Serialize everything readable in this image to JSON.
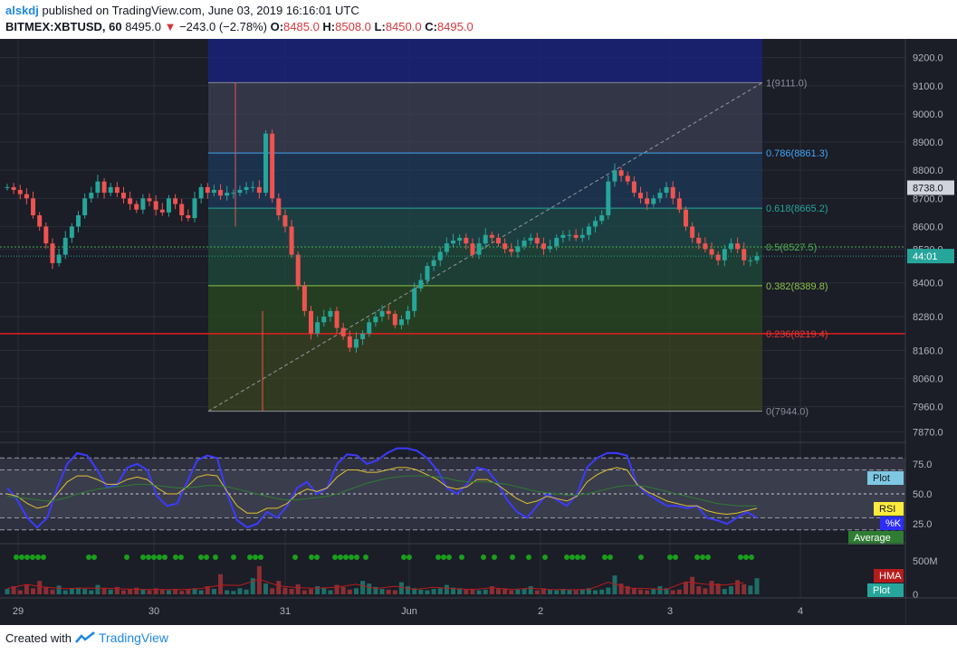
{
  "header": {
    "user": "alskdj",
    "published_text": "published on TradingView.com, June 03, 2019 16:16:01 UTC",
    "symbol": "BITMEX:XBTUSD, 60",
    "last": "8495.0",
    "change": "−243.0 (−2.78%)",
    "o_label": "O:",
    "o_value": "8485.0",
    "h_label": "H:",
    "h_value": "8508.0",
    "l_label": "L:",
    "l_value": "8450.0",
    "c_label": "C:",
    "c_value": "8495.0"
  },
  "footer": {
    "created_with": "Created with",
    "brand": "TradingView"
  },
  "colors": {
    "up": "#26a69a",
    "down": "#ef5350",
    "panel": "#1b1d27",
    "grid": "#2a2e39",
    "axis_text": "#b2b5be",
    "fib_red_line": "#e01e1e",
    "stoch_k": "#3b3bff",
    "stoch_d": "#e0c030",
    "rsi_avg": "#2e7d32",
    "hma": "#b71c1c",
    "cycle_dot": "#1b9e1b"
  },
  "chart_data": [
    {
      "type": "candlestick",
      "title": "BITMEX:XBTUSD, 60",
      "x_tick_labels": [
        "29",
        "30",
        "31",
        "Jun",
        "2",
        "3",
        "4"
      ],
      "y_tick_labels": [
        "9200.0",
        "9100.0",
        "9000.0",
        "8900.0",
        "8800.0",
        "8700.0",
        "8600.0",
        "8520.0",
        "8400.0",
        "8280.0",
        "8160.0",
        "8060.0",
        "7960.0",
        "7870.0"
      ],
      "y_ticks": [
        9200,
        9100,
        9000,
        8900,
        8800,
        8700,
        8600,
        8520,
        8400,
        8280,
        8160,
        8060,
        7960,
        7870
      ],
      "ylim": [
        7840,
        9260
      ],
      "price_label": "8738.0",
      "price_label_value": 8738,
      "countdown_label": "44:01",
      "current_value": 8495,
      "candle_pattern": [
        8740,
        8730,
        8715,
        8700,
        8640,
        8600,
        8540,
        8470,
        8500,
        8560,
        8600,
        8640,
        8700,
        8720,
        8760,
        8720,
        8740,
        8720,
        8700,
        8680,
        8660,
        8700,
        8690,
        8660,
        8650,
        8700,
        8680,
        8640,
        8630,
        8700,
        8740,
        8720,
        8730,
        8710,
        8720,
        8720,
        8730,
        8740,
        8740,
        8720,
        8930,
        8700,
        8640,
        8600,
        8500,
        8390,
        8300,
        8220,
        8260,
        8280,
        8300,
        8240,
        8210,
        8170,
        8200,
        8220,
        8260,
        8280,
        8300,
        8290,
        8250,
        8270,
        8300,
        8380,
        8410,
        8460,
        8480,
        8510,
        8540,
        8550,
        8560,
        8540,
        8500,
        8540,
        8570,
        8560,
        8540,
        8520,
        8510,
        8530,
        8550,
        8560,
        8540,
        8520,
        8530,
        8560,
        8570,
        8570,
        8560,
        8570,
        8600,
        8620,
        8640,
        8760,
        8800,
        8780,
        8760,
        8720,
        8700,
        8680,
        8700,
        8720,
        8740,
        8700,
        8660,
        8600,
        8560,
        8540,
        8520,
        8500,
        8480,
        8520,
        8540,
        8520,
        8480,
        8480,
        8495
      ],
      "fibonacci": {
        "levels": [
          {
            "label": "1(9111.0)",
            "value": 9111.0
          },
          {
            "label": "0.786(8861.3)",
            "value": 8861.3
          },
          {
            "label": "0.618(8665.2)",
            "value": 8665.2
          },
          {
            "label": "0.5(8527.5)",
            "value": 8527.5
          },
          {
            "label": "0.382(8389.8)",
            "value": 8389.8
          },
          {
            "label": "0.236(8219.4)",
            "value": 8219.4
          },
          {
            "label": "0(7944.0)",
            "value": 7944.0
          }
        ]
      }
    },
    {
      "type": "line",
      "title": "Stochastic / RSI",
      "y_tick_labels": [
        "75.0",
        "50.0",
        "25.0"
      ],
      "y_ticks": [
        75,
        50,
        25
      ],
      "ylim": [
        10,
        90
      ],
      "bands": [
        80,
        70,
        30,
        20
      ],
      "legend": [
        "Plot",
        "RSI",
        "%K",
        "Average"
      ],
      "series": [
        {
          "name": "%K",
          "values": [
            55,
            45,
            30,
            22,
            30,
            55,
            75,
            84,
            82,
            70,
            55,
            58,
            72,
            75,
            70,
            48,
            40,
            42,
            60,
            78,
            82,
            80,
            50,
            28,
            22,
            25,
            35,
            30,
            40,
            55,
            60,
            50,
            55,
            75,
            83,
            82,
            75,
            78,
            84,
            88,
            88,
            86,
            80,
            70,
            55,
            50,
            58,
            72,
            70,
            60,
            45,
            35,
            30,
            40,
            50,
            45,
            40,
            50,
            72,
            80,
            84,
            84,
            82,
            58,
            50,
            45,
            40,
            40,
            38,
            40,
            30,
            28,
            25,
            30,
            35,
            30
          ]
        },
        {
          "name": "RSI",
          "values": [
            50,
            48,
            42,
            38,
            40,
            50,
            60,
            65,
            65,
            62,
            58,
            58,
            62,
            64,
            62,
            55,
            50,
            50,
            56,
            64,
            66,
            65,
            52,
            40,
            34,
            34,
            38,
            38,
            42,
            50,
            54,
            52,
            55,
            64,
            70,
            70,
            68,
            68,
            70,
            72,
            72,
            70,
            66,
            62,
            56,
            54,
            56,
            62,
            62,
            58,
            52,
            46,
            42,
            44,
            48,
            46,
            44,
            48,
            60,
            66,
            70,
            72,
            70,
            58,
            52,
            48,
            44,
            42,
            40,
            40,
            36,
            34,
            33,
            34,
            36,
            38
          ]
        },
        {
          "name": "Average",
          "values": [
            48,
            47,
            46,
            45,
            44,
            45,
            47,
            50,
            52,
            54,
            55,
            56,
            57,
            58,
            58,
            57,
            56,
            55,
            55,
            56,
            57,
            57,
            56,
            54,
            52,
            50,
            48,
            46,
            45,
            45,
            46,
            47,
            48,
            50,
            53,
            56,
            59,
            61,
            63,
            64,
            65,
            65,
            65,
            64,
            63,
            61,
            60,
            60,
            60,
            59,
            58,
            56,
            54,
            52,
            51,
            50,
            49,
            49,
            50,
            52,
            54,
            56,
            57,
            57,
            56,
            54,
            52,
            50,
            48,
            46,
            44,
            42,
            41,
            40,
            40,
            40
          ]
        }
      ]
    },
    {
      "type": "bar",
      "title": "Volume",
      "y_tick_labels": [
        "500M",
        "0"
      ],
      "y_ticks": [
        500,
        0
      ],
      "ylim": [
        0,
        700
      ],
      "legend": [
        "HMA",
        "Plot"
      ],
      "series": [
        {
          "name": "Volume",
          "values": [
            80,
            120,
            60,
            150,
            90,
            200,
            110,
            70,
            130,
            60,
            90,
            100,
            80,
            60,
            140,
            90,
            70,
            110,
            60,
            80,
            100,
            70,
            60,
            90,
            70,
            60,
            80,
            50,
            70,
            90,
            60,
            120,
            80,
            300,
            60,
            50,
            90,
            70,
            240,
            420,
            160,
            90,
            200,
            100,
            80,
            150,
            60,
            80,
            120,
            90,
            60,
            140,
            110,
            70,
            90,
            200,
            160,
            110,
            80,
            70,
            60,
            180,
            120,
            90,
            70,
            60,
            80,
            90,
            140,
            100,
            90,
            70,
            80,
            60,
            70,
            120,
            80,
            90,
            60,
            70,
            80,
            120,
            60,
            90,
            70,
            60,
            80,
            70,
            60,
            70,
            90,
            60,
            70,
            100,
            280,
            160,
            120,
            90,
            70,
            60,
            80,
            120,
            90,
            60,
            70,
            180,
            260,
            120,
            90,
            200,
            160,
            80,
            120,
            210,
            150,
            130,
            240
          ]
        }
      ]
    }
  ]
}
